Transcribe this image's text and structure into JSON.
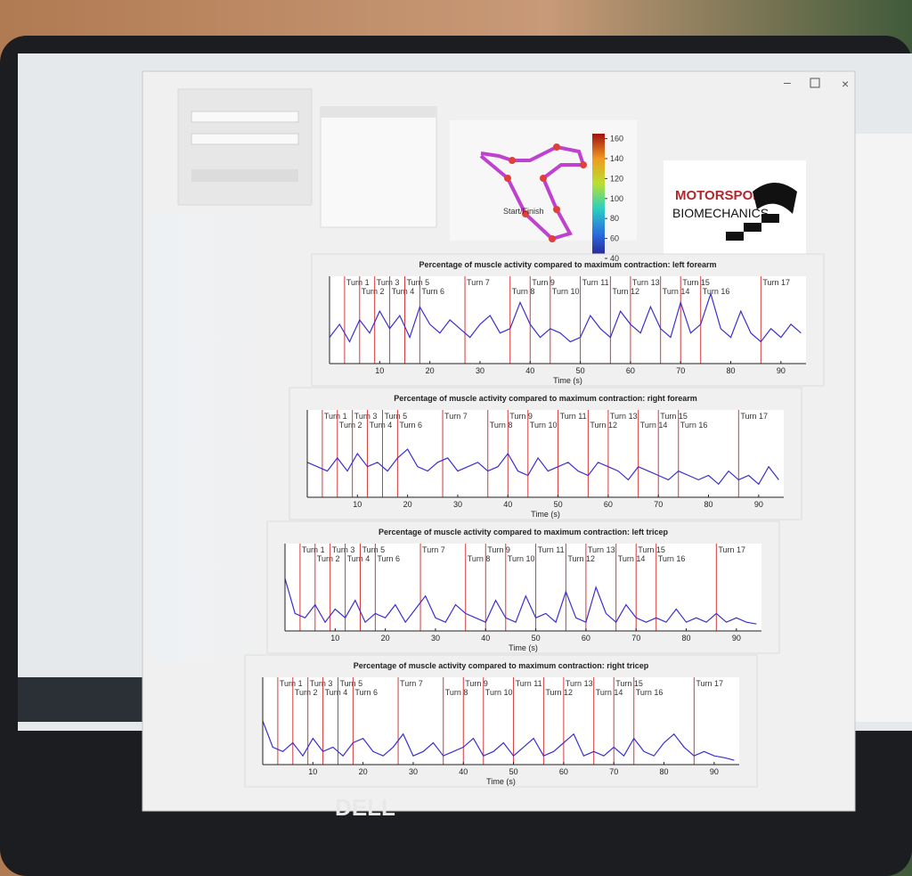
{
  "laptop": {
    "brand": "DELL"
  },
  "track_map": {
    "start_label": "Start/Finish",
    "colorbar_ticks": [
      40,
      60,
      80,
      100,
      120,
      140,
      160
    ],
    "colorbar_lim": [
      40,
      165
    ]
  },
  "logo": {
    "line1": "MOTORSPORT",
    "line2": "BIOMECHANICS"
  },
  "turns": [
    {
      "label": "Turn 1",
      "x": 3
    },
    {
      "label": "Turn 2",
      "x": 6
    },
    {
      "label": "Turn 3",
      "x": 9
    },
    {
      "label": "Turn 4",
      "x": 12
    },
    {
      "label": "Turn 5",
      "x": 15
    },
    {
      "label": "Turn 6",
      "x": 18
    },
    {
      "label": "Turn 7",
      "x": 27
    },
    {
      "label": "Turn 8",
      "x": 36
    },
    {
      "label": "Turn 9",
      "x": 40
    },
    {
      "label": "Turn 10",
      "x": 44
    },
    {
      "label": "Turn 11",
      "x": 50
    },
    {
      "label": "Turn 12",
      "x": 56
    },
    {
      "label": "Turn 13",
      "x": 60
    },
    {
      "label": "Turn 14",
      "x": 66
    },
    {
      "label": "Turn 15",
      "x": 70
    },
    {
      "label": "Turn 16",
      "x": 74
    },
    {
      "label": "Turn 17",
      "x": 86
    }
  ],
  "chart_data": [
    {
      "type": "line",
      "title": "Percentage of muscle activity compared to maximum contraction: left forearm",
      "xlabel": "Time (s)",
      "xlim": [
        0,
        95
      ],
      "ylim": [
        0,
        100
      ],
      "xticks": [
        10,
        20,
        30,
        40,
        50,
        60,
        70,
        80,
        90
      ],
      "x": [
        0,
        2,
        4,
        6,
        8,
        10,
        12,
        14,
        16,
        18,
        20,
        22,
        24,
        26,
        28,
        30,
        32,
        34,
        36,
        38,
        40,
        42,
        44,
        46,
        48,
        50,
        52,
        54,
        56,
        58,
        60,
        62,
        64,
        66,
        68,
        70,
        72,
        74,
        76,
        78,
        80,
        82,
        84,
        86,
        88,
        90,
        92,
        94
      ],
      "series": [
        {
          "color": "#3b2fd1",
          "values": [
            30,
            45,
            25,
            50,
            35,
            60,
            40,
            55,
            30,
            65,
            45,
            35,
            50,
            40,
            30,
            45,
            55,
            35,
            40,
            70,
            45,
            30,
            40,
            35,
            25,
            30,
            55,
            40,
            30,
            60,
            45,
            35,
            65,
            40,
            30,
            70,
            35,
            45,
            80,
            40,
            30,
            60,
            35,
            25,
            40,
            30,
            45,
            35
          ]
        }
      ]
    },
    {
      "type": "line",
      "title": "Percentage of muscle activity compared to maximum contraction: right forearm",
      "xlabel": "Time (s)",
      "xlim": [
        0,
        95
      ],
      "ylim": [
        0,
        100
      ],
      "xticks": [
        10,
        20,
        30,
        40,
        50,
        60,
        70,
        80,
        90
      ],
      "x": [
        0,
        2,
        4,
        6,
        8,
        10,
        12,
        14,
        16,
        18,
        20,
        22,
        24,
        26,
        28,
        30,
        32,
        34,
        36,
        38,
        40,
        42,
        44,
        46,
        48,
        50,
        52,
        54,
        56,
        58,
        60,
        62,
        64,
        66,
        68,
        70,
        72,
        74,
        76,
        78,
        80,
        82,
        84,
        86,
        88,
        90,
        92,
        94
      ],
      "series": [
        {
          "color": "#3b2fd1",
          "values": [
            40,
            35,
            30,
            45,
            30,
            50,
            35,
            40,
            30,
            45,
            55,
            35,
            30,
            40,
            45,
            30,
            35,
            40,
            30,
            35,
            50,
            30,
            25,
            45,
            30,
            35,
            40,
            30,
            25,
            40,
            35,
            30,
            20,
            35,
            30,
            25,
            20,
            30,
            25,
            20,
            25,
            15,
            30,
            20,
            25,
            15,
            35,
            20
          ]
        }
      ]
    },
    {
      "type": "line",
      "title": "Percentage of muscle activity compared to maximum contraction: left tricep",
      "xlabel": "Time (s)",
      "xlim": [
        0,
        95
      ],
      "ylim": [
        0,
        100
      ],
      "xticks": [
        10,
        20,
        30,
        40,
        50,
        60,
        70,
        80,
        90
      ],
      "x": [
        0,
        2,
        4,
        6,
        8,
        10,
        12,
        14,
        16,
        18,
        20,
        22,
        24,
        26,
        28,
        30,
        32,
        34,
        36,
        38,
        40,
        42,
        44,
        46,
        48,
        50,
        52,
        54,
        56,
        58,
        60,
        62,
        64,
        66,
        68,
        70,
        72,
        74,
        76,
        78,
        80,
        82,
        84,
        86,
        88,
        90,
        92,
        94
      ],
      "series": [
        {
          "color": "#3b2fd1",
          "values": [
            60,
            20,
            15,
            30,
            10,
            25,
            15,
            35,
            10,
            20,
            15,
            30,
            10,
            25,
            40,
            15,
            10,
            30,
            20,
            15,
            10,
            35,
            15,
            10,
            40,
            15,
            20,
            10,
            45,
            15,
            10,
            50,
            20,
            10,
            30,
            15,
            10,
            15,
            10,
            25,
            10,
            15,
            10,
            20,
            10,
            15,
            10,
            8
          ]
        }
      ]
    },
    {
      "type": "line",
      "title": "Percentage of muscle activity compared to maximum contraction: right tricep",
      "xlabel": "Time (s)",
      "xlim": [
        0,
        95
      ],
      "ylim": [
        0,
        100
      ],
      "xticks": [
        10,
        20,
        30,
        40,
        50,
        60,
        70,
        80,
        90
      ],
      "x": [
        0,
        2,
        4,
        6,
        8,
        10,
        12,
        14,
        16,
        18,
        20,
        22,
        24,
        26,
        28,
        30,
        32,
        34,
        36,
        38,
        40,
        42,
        44,
        46,
        48,
        50,
        52,
        54,
        56,
        58,
        60,
        62,
        64,
        66,
        68,
        70,
        72,
        74,
        76,
        78,
        80,
        82,
        84,
        86,
        88,
        90,
        92,
        94
      ],
      "series": [
        {
          "color": "#3b2fd1",
          "values": [
            50,
            20,
            15,
            25,
            10,
            30,
            15,
            20,
            10,
            25,
            30,
            15,
            10,
            20,
            35,
            10,
            15,
            25,
            10,
            15,
            20,
            30,
            10,
            15,
            25,
            10,
            20,
            30,
            10,
            15,
            25,
            35,
            10,
            15,
            10,
            20,
            10,
            30,
            15,
            10,
            25,
            35,
            20,
            10,
            15,
            10,
            8,
            5
          ]
        }
      ]
    }
  ]
}
